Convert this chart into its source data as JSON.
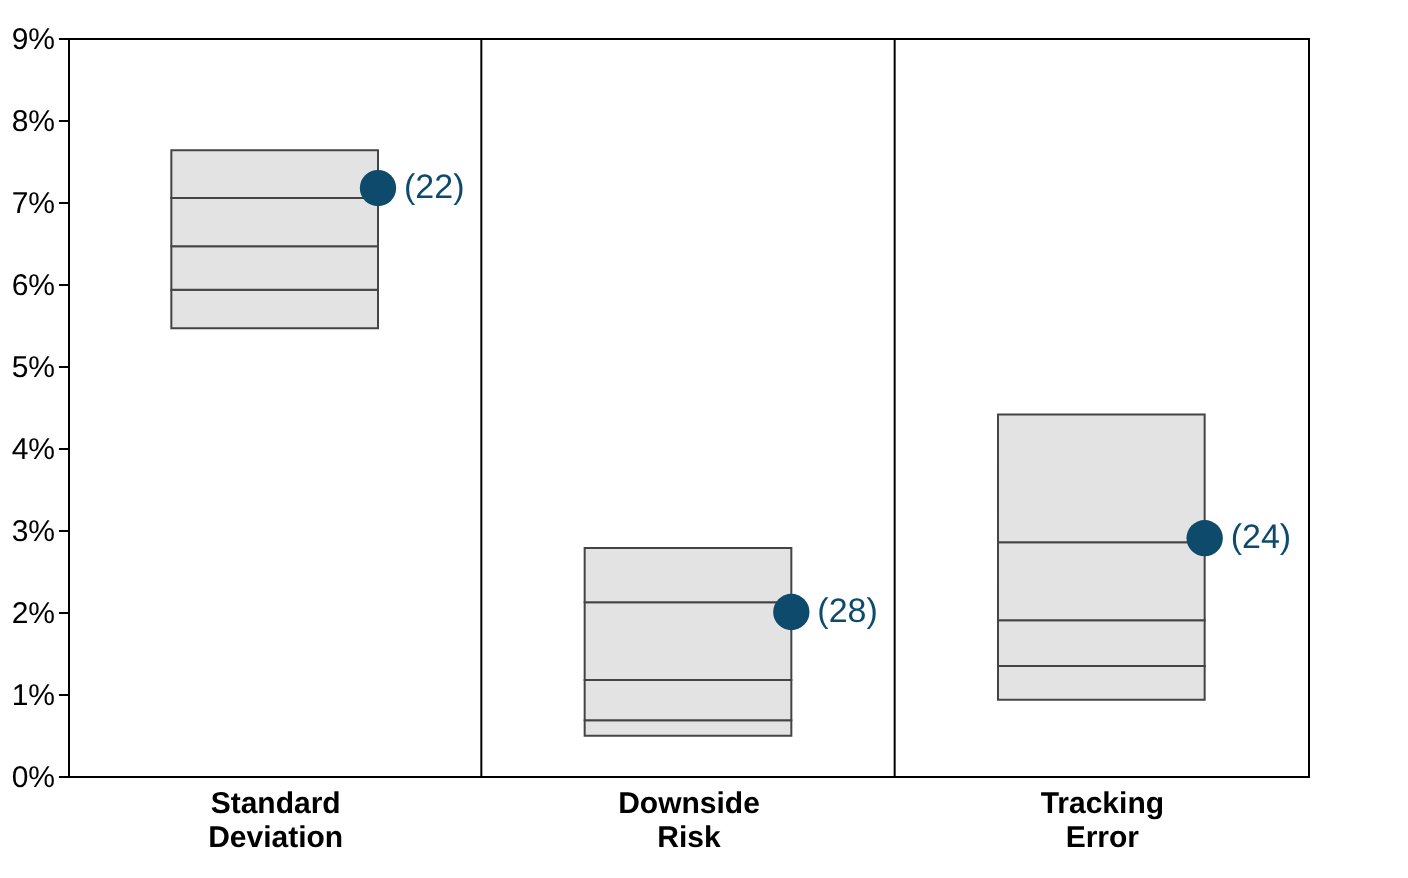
{
  "chart_data": {
    "type": "bar",
    "categories": [
      "Standard Deviation",
      "Downside Risk",
      "Tracking Error"
    ],
    "series": [
      {
        "color": "#e3e3e3",
        "base": [
          5.46,
          0.49,
          0.93
        ],
        "values": [
          0.47,
          0.19,
          0.41
        ]
      },
      {
        "color": "#e3e3e3",
        "base": [
          5.93,
          0.68,
          1.34
        ],
        "values": [
          0.53,
          0.49,
          0.56
        ]
      },
      {
        "color": "#e3e3e3",
        "base": [
          6.46,
          1.17,
          1.9
        ],
        "values": [
          0.59,
          0.95,
          0.95
        ]
      },
      {
        "color": "#e3e3e3",
        "base": [
          7.05,
          2.12,
          2.85
        ],
        "values": [
          0.58,
          0.66,
          1.56
        ]
      },
      {
        "type": "scatter",
        "color": "#0d4a6b",
        "values": [
          7.17,
          2.0,
          2.9
        ]
      }
    ],
    "annotations": [
      "(22)",
      "(28)",
      "(24)"
    ],
    "ylim": [
      0,
      9
    ],
    "yticks": [
      {
        "value": 0,
        "label": "0%"
      },
      {
        "value": 1,
        "label": "1%"
      },
      {
        "value": 2,
        "label": "2%"
      },
      {
        "value": 3,
        "label": "3%"
      },
      {
        "value": 4,
        "label": "4%"
      },
      {
        "value": 5,
        "label": "5%"
      },
      {
        "value": 6,
        "label": "6%"
      },
      {
        "value": 7,
        "label": "7%"
      },
      {
        "value": 8,
        "label": "8%"
      },
      {
        "value": 9,
        "label": "9%"
      }
    ],
    "grid": "x",
    "legend": false,
    "marker": "circle"
  }
}
